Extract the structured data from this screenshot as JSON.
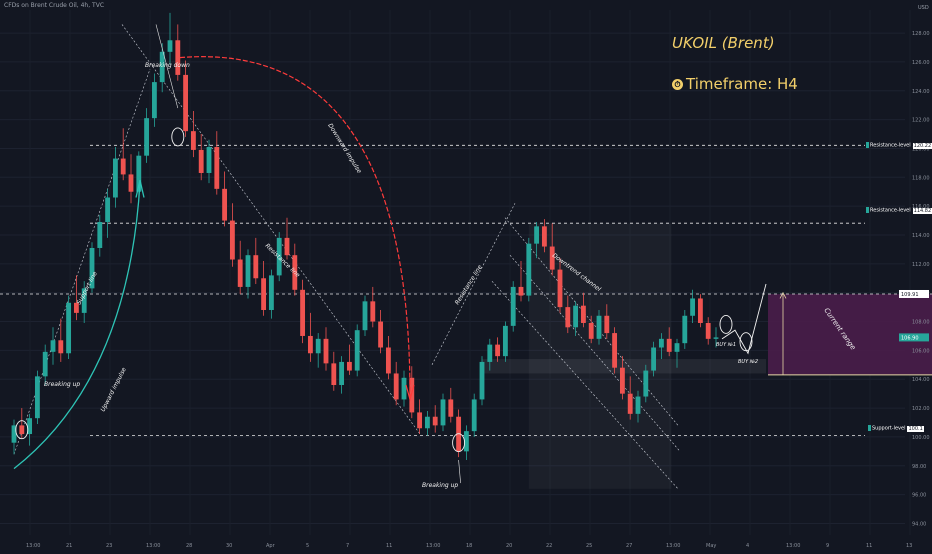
{
  "header": {
    "symbol_line": "CFDs on Brent Crude Oil, 4h, TVC"
  },
  "currency": "USD",
  "title": "UKOIL (Brent)",
  "timeframe": {
    "label": "Timeframe: H4",
    "icon": "clock-icon"
  },
  "colors": {
    "background": "#131722",
    "up": "#26a69a",
    "down": "#ef5350",
    "accent": "#f2cf6a",
    "range": "#4a1d4a",
    "curve_up": "#2ec4b6",
    "curve_down": "#ff3b3b"
  },
  "chart_data": {
    "type": "candlestick",
    "x_ticks": [
      "13:00",
      "21",
      "23",
      "13:00",
      "28",
      "30",
      "Apr",
      "5",
      "7",
      "11",
      "13:00",
      "18",
      "20",
      "22",
      "25",
      "27",
      "13:00",
      "May",
      "4",
      "13:00",
      "9",
      "11",
      "13"
    ],
    "y_ticks": [
      94.0,
      96.0,
      98.0,
      100.0,
      102.0,
      104.0,
      106.0,
      108.0,
      110.0,
      112.0,
      114.0,
      116.0,
      118.0,
      120.0,
      122.0,
      124.0,
      126.0,
      128.0
    ],
    "ylim": [
      93.2,
      129.6
    ],
    "levels": [
      {
        "name": "Resistance-level",
        "value": 120.22
      },
      {
        "name": "Resistance-level",
        "value": 114.82
      },
      {
        "name": "",
        "value": 109.91
      },
      {
        "name": "Support-level",
        "value": 100.1
      }
    ],
    "current_price": 106.9,
    "candles": [
      [
        99.6,
        101.2,
        98.8,
        100.8
      ],
      [
        100.8,
        102.0,
        99.9,
        100.2
      ],
      [
        100.2,
        101.6,
        99.4,
        101.3
      ],
      [
        101.3,
        104.6,
        100.9,
        104.2
      ],
      [
        104.2,
        106.4,
        103.6,
        105.9
      ],
      [
        105.9,
        107.6,
        105.0,
        106.7
      ],
      [
        106.7,
        108.2,
        105.2,
        105.8
      ],
      [
        105.8,
        109.8,
        105.4,
        109.3
      ],
      [
        109.3,
        111.2,
        108.1,
        108.6
      ],
      [
        108.6,
        110.8,
        107.9,
        110.3
      ],
      [
        110.3,
        113.5,
        110.0,
        113.1
      ],
      [
        113.1,
        115.4,
        112.5,
        114.9
      ],
      [
        114.9,
        117.2,
        113.8,
        116.6
      ],
      [
        116.6,
        120.1,
        115.9,
        119.3
      ],
      [
        119.3,
        121.4,
        117.8,
        118.2
      ],
      [
        118.2,
        119.6,
        116.2,
        117.0
      ],
      [
        117.0,
        119.8,
        116.6,
        119.5
      ],
      [
        119.5,
        122.8,
        119.0,
        122.1
      ],
      [
        122.1,
        125.2,
        121.5,
        124.6
      ],
      [
        124.6,
        127.3,
        123.9,
        126.7
      ],
      [
        126.7,
        129.4,
        125.8,
        127.5
      ],
      [
        127.5,
        128.6,
        124.7,
        125.1
      ],
      [
        125.1,
        126.1,
        120.8,
        121.2
      ],
      [
        121.2,
        122.6,
        119.4,
        119.9
      ],
      [
        119.9,
        121.0,
        117.8,
        118.3
      ],
      [
        118.3,
        120.6,
        117.6,
        120.1
      ],
      [
        120.1,
        121.2,
        116.8,
        117.2
      ],
      [
        117.2,
        118.4,
        114.6,
        115.0
      ],
      [
        115.0,
        116.2,
        111.8,
        112.3
      ],
      [
        112.3,
        113.6,
        109.9,
        110.4
      ],
      [
        110.4,
        113.0,
        109.6,
        112.6
      ],
      [
        112.6,
        113.8,
        110.6,
        111.0
      ],
      [
        111.0,
        112.2,
        108.4,
        108.8
      ],
      [
        108.8,
        111.6,
        108.2,
        111.2
      ],
      [
        111.2,
        114.2,
        110.8,
        113.8
      ],
      [
        113.8,
        115.2,
        112.3,
        112.6
      ],
      [
        112.6,
        113.4,
        109.8,
        110.2
      ],
      [
        110.2,
        110.9,
        106.5,
        107.0
      ],
      [
        107.0,
        108.6,
        105.2,
        105.8
      ],
      [
        105.8,
        107.2,
        104.8,
        106.8
      ],
      [
        106.8,
        107.6,
        104.6,
        105.1
      ],
      [
        105.1,
        105.9,
        103.2,
        103.6
      ],
      [
        103.6,
        105.6,
        103.0,
        105.2
      ],
      [
        105.2,
        106.4,
        104.3,
        104.6
      ],
      [
        104.6,
        107.8,
        104.2,
        107.4
      ],
      [
        107.4,
        109.8,
        107.0,
        109.4
      ],
      [
        109.4,
        110.4,
        107.6,
        108.0
      ],
      [
        108.0,
        108.8,
        105.8,
        106.2
      ],
      [
        106.2,
        107.0,
        104.0,
        104.4
      ],
      [
        104.4,
        105.2,
        102.2,
        102.6
      ],
      [
        102.6,
        104.6,
        102.1,
        104.1
      ],
      [
        104.1,
        104.9,
        101.3,
        101.7
      ],
      [
        101.7,
        102.6,
        100.2,
        100.6
      ],
      [
        100.6,
        101.8,
        100.1,
        101.4
      ],
      [
        101.4,
        102.2,
        100.3,
        100.8
      ],
      [
        100.8,
        103.0,
        100.4,
        102.6
      ],
      [
        102.6,
        103.4,
        101.0,
        101.4
      ],
      [
        101.4,
        101.9,
        98.6,
        99.0
      ],
      [
        99.0,
        100.8,
        98.4,
        100.4
      ],
      [
        100.4,
        103.0,
        100.0,
        102.6
      ],
      [
        102.6,
        105.6,
        102.2,
        105.2
      ],
      [
        105.2,
        106.8,
        104.6,
        106.4
      ],
      [
        106.4,
        106.9,
        105.2,
        105.6
      ],
      [
        105.6,
        108.0,
        105.2,
        107.7
      ],
      [
        107.7,
        110.8,
        107.3,
        110.4
      ],
      [
        110.4,
        112.2,
        109.4,
        109.8
      ],
      [
        109.8,
        113.8,
        109.4,
        113.4
      ],
      [
        113.4,
        114.9,
        112.4,
        114.6
      ],
      [
        114.6,
        115.1,
        112.8,
        113.2
      ],
      [
        113.2,
        114.8,
        111.2,
        111.6
      ],
      [
        111.6,
        112.4,
        108.6,
        109.0
      ],
      [
        109.0,
        109.8,
        107.2,
        107.6
      ],
      [
        107.6,
        109.4,
        107.0,
        109.1
      ],
      [
        109.1,
        110.0,
        107.6,
        107.9
      ],
      [
        107.9,
        108.4,
        106.5,
        106.8
      ],
      [
        106.8,
        108.8,
        106.4,
        108.4
      ],
      [
        108.4,
        109.2,
        106.8,
        107.2
      ],
      [
        107.2,
        107.6,
        104.4,
        104.8
      ],
      [
        104.8,
        105.6,
        102.6,
        103.0
      ],
      [
        103.0,
        104.2,
        101.2,
        101.6
      ],
      [
        101.6,
        103.2,
        101.0,
        102.8
      ],
      [
        102.8,
        105.0,
        102.4,
        104.6
      ],
      [
        104.6,
        106.6,
        104.2,
        106.2
      ],
      [
        106.2,
        107.2,
        105.4,
        106.8
      ],
      [
        106.8,
        107.6,
        105.6,
        105.9
      ],
      [
        105.9,
        106.8,
        104.8,
        106.5
      ],
      [
        106.5,
        108.8,
        106.1,
        108.4
      ],
      [
        108.4,
        110.2,
        107.9,
        109.6
      ],
      [
        109.6,
        109.9,
        107.6,
        107.9
      ],
      [
        107.9,
        108.3,
        106.4,
        106.8
      ],
      [
        106.8,
        107.6,
        106.2,
        106.9
      ]
    ],
    "annotations": {
      "breaking_down": "Breaking down",
      "breaking_up_left": "Breaking up",
      "breaking_up_mid": "Breaking up",
      "support_line": "Support line",
      "upward_impulse": "Upward impulse",
      "resistance_line_left": "Resistance line",
      "resistance_line_mid": "Resistance line",
      "downward_impulse": "Downward impulse",
      "downtrend_channel": "Downtrend channel",
      "current_range": "Current range",
      "buy1": "BUY №1",
      "buy2": "BUY №2"
    }
  }
}
